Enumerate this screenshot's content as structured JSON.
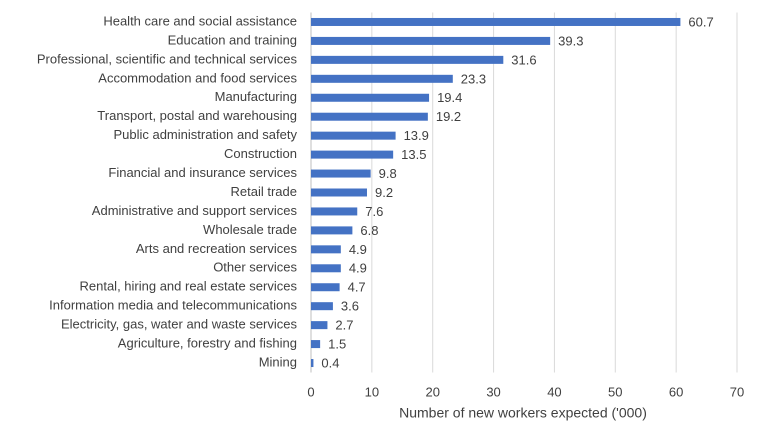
{
  "chart_data": {
    "type": "bar",
    "orientation": "horizontal",
    "categories": [
      "Health care and social assistance",
      "Education and training",
      "Professional, scientific and technical services",
      "Accommodation and food services",
      "Manufacturing",
      "Transport, postal and warehousing",
      "Public administration and safety",
      "Construction",
      "Financial and insurance services",
      "Retail trade",
      "Administrative and support services",
      "Wholesale trade",
      "Arts and recreation services",
      "Other services",
      "Rental, hiring and real estate services",
      "Information media and telecommunications",
      "Electricity, gas, water and waste services",
      "Agriculture, forestry and fishing",
      "Mining"
    ],
    "values": [
      60.7,
      39.3,
      31.6,
      23.3,
      19.4,
      19.2,
      13.9,
      13.5,
      9.8,
      9.2,
      7.6,
      6.8,
      4.9,
      4.9,
      4.7,
      3.6,
      2.7,
      1.5,
      0.4
    ],
    "color": "#4472c4",
    "xlabel": "Number of new workers expected ('000)",
    "xlim": [
      0,
      70
    ],
    "xticks": [
      0,
      10,
      20,
      30,
      40,
      50,
      60,
      70
    ],
    "grid": true
  }
}
